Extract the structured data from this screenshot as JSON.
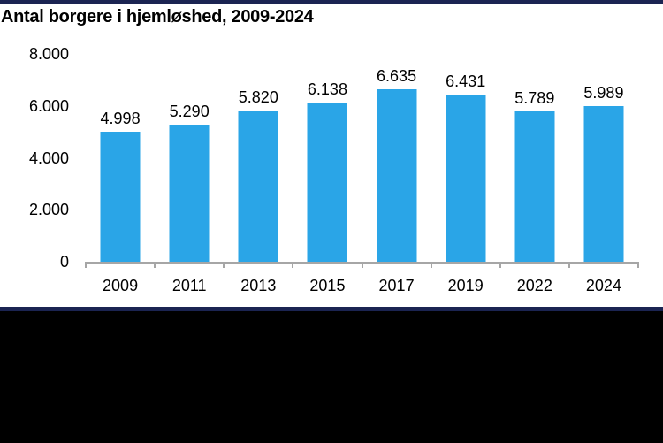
{
  "page": {
    "background_color": "#FFFFFF",
    "top_stripe_color": "#1B2452",
    "bottom_stripe_color": "#1B2452",
    "footer_color": "#000000"
  },
  "chart_data": {
    "type": "bar",
    "title": "Antal borgere i hjemløshed, 2009-2024",
    "categories": [
      "2009",
      "2011",
      "2013",
      "2015",
      "2017",
      "2019",
      "2022",
      "2024"
    ],
    "values": [
      4998,
      5290,
      5820,
      6138,
      6635,
      6431,
      5789,
      5989
    ],
    "value_labels": [
      "4.998",
      "5.290",
      "5.820",
      "6.138",
      "6.635",
      "6.431",
      "5.789",
      "5.989"
    ],
    "xlabel": "",
    "ylabel": "",
    "ylim": [
      0,
      8000
    ],
    "yticks": [
      0,
      2000,
      4000,
      6000,
      8000
    ],
    "ytick_labels": [
      "0",
      "2.000",
      "4.000",
      "6.000",
      "8.000"
    ],
    "bar_color": "#2AA5E7",
    "axis_color": "#A6A6A6",
    "grid": false,
    "legend": null
  }
}
